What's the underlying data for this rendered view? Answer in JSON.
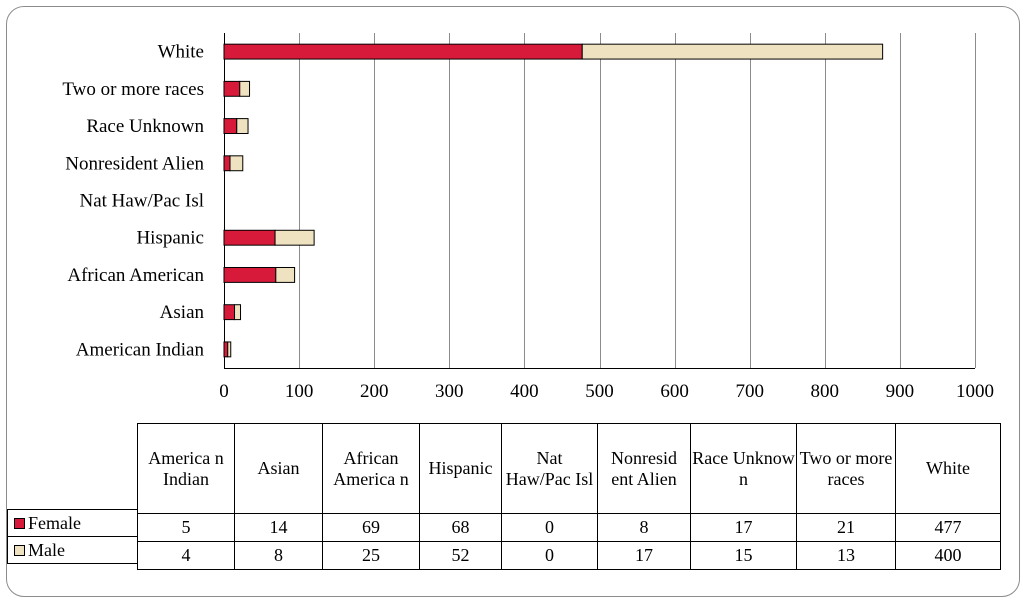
{
  "chart_data": {
    "type": "bar",
    "orientation": "horizontal",
    "stacked": true,
    "categories": [
      "American Indian",
      "Asian",
      "African American",
      "Hispanic",
      "Nat Haw/Pac Isl",
      "Nonresident Alien",
      "Race Unknown",
      "Two or more races",
      "White"
    ],
    "series": [
      {
        "name": "Female",
        "color": "#d7193a",
        "values": [
          5,
          14,
          69,
          68,
          0,
          8,
          17,
          21,
          477
        ]
      },
      {
        "name": "Male",
        "color": "#efe2c0",
        "values": [
          4,
          8,
          25,
          52,
          0,
          17,
          15,
          13,
          400
        ]
      }
    ],
    "xlim": [
      0,
      1000
    ],
    "x_ticks": [
      "0",
      "100",
      "200",
      "300",
      "400",
      "500",
      "600",
      "700",
      "800",
      "900",
      "1000"
    ],
    "grid": "vertical",
    "legend": "data-table",
    "title": "",
    "xlabel": "",
    "ylabel": ""
  },
  "table": {
    "headers": [
      "America n Indian",
      "Asian",
      "African America n",
      "Hispanic",
      "Nat Haw/Pac Isl",
      "Nonresid ent Alien",
      "Race Unknow n",
      "Two or more races",
      "White"
    ],
    "rows": [
      {
        "label": "Female",
        "values": [
          "5",
          "14",
          "69",
          "68",
          "0",
          "8",
          "17",
          "21",
          "477"
        ]
      },
      {
        "label": "Male",
        "values": [
          "4",
          "8",
          "25",
          "52",
          "0",
          "17",
          "15",
          "13",
          "400"
        ]
      }
    ]
  }
}
